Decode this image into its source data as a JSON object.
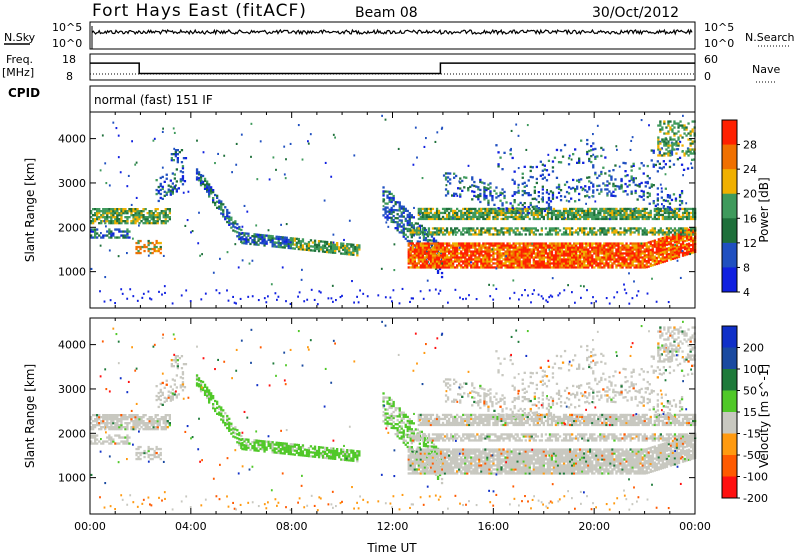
{
  "header": {
    "title": "Fort Hays East (fitACF)",
    "beam": "Beam 08",
    "date": "30/Oct/2012"
  },
  "panels": {
    "nsky": {
      "left_label": "N.Sky",
      "right_label": "N.Search",
      "left_ticks": [
        "10^5",
        "10^0"
      ],
      "right_ticks": [
        "10^5",
        "10^0"
      ]
    },
    "freq": {
      "left_label_1": "Freq.",
      "left_label_2": "[MHz]",
      "right_label": "Nave",
      "left_ticks": [
        "18",
        "8"
      ],
      "right_ticks": [
        "60",
        "0"
      ]
    },
    "cpid": {
      "label": "CPID",
      "text": "normal (fast) 151 IF"
    }
  },
  "colors": {
    "power": [
      "#1020e0",
      "#2050c0",
      "#1e6f3a",
      "#3f9a5c",
      "#f0b000",
      "#f07000",
      "#ff2000"
    ],
    "velocity": [
      "#ff1010",
      "#ff5a00",
      "#ff9a10",
      "#c8c8c0",
      "#50c828",
      "#1e7a3a",
      "#1a4aa0",
      "#1030c8"
    ]
  },
  "chart_data": [
    {
      "type": "heatmap",
      "name": "power",
      "ylabel": "Slant Range [km]",
      "colorbar_label": "Power [dB]",
      "colorbar_ticks": [
        "28",
        "24",
        "20",
        "16",
        "12",
        "8",
        "4"
      ],
      "x_ticks": [
        "00:00",
        "04:00",
        "08:00",
        "12:00",
        "16:00",
        "20:00",
        "00:00"
      ],
      "y_ticks": [
        "4000",
        "3000",
        "2000",
        "1000"
      ],
      "ylim": [
        180,
        4600
      ],
      "xlim_hours": [
        0,
        24
      ]
    },
    {
      "type": "heatmap",
      "name": "velocity",
      "ylabel": "Slant Range [km]",
      "colorbar_label": "Velocity [m s^-1]",
      "colorbar_ticks": [
        "200",
        "100",
        "50",
        "15",
        "-15",
        "-50",
        "-100",
        "-200"
      ],
      "x_ticks": [
        "00:00",
        "04:00",
        "08:00",
        "12:00",
        "16:00",
        "20:00",
        "00:00"
      ],
      "y_ticks": [
        "4000",
        "3000",
        "2000",
        "1000"
      ],
      "xlabel": "Time UT",
      "ylim": [
        180,
        4600
      ],
      "xlim_hours": [
        0,
        24
      ]
    }
  ],
  "freq_series": {
    "hours": [
      0,
      1.95,
      1.95,
      13.9,
      13.9,
      24
    ],
    "mhz": [
      14.5,
      14.5,
      10.5,
      10.5,
      14.5,
      14.5
    ]
  }
}
